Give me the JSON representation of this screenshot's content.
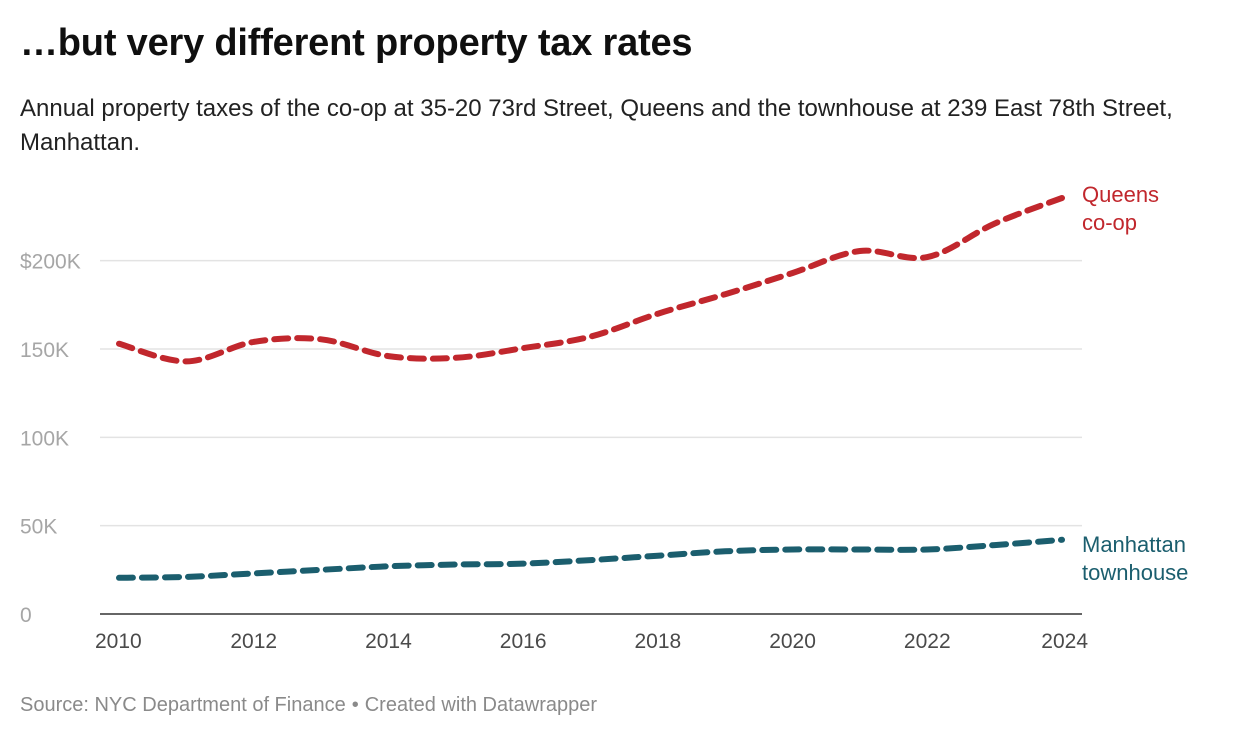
{
  "header": {
    "title": "…but very different property tax rates",
    "subtitle": "Annual property taxes of the co-op at 35-20 73rd Street, Queens and the townhouse at 239 East 78th Street, Manhattan."
  },
  "footer": {
    "source": "Source: NYC Department of Finance",
    "separator": "•",
    "credit": "Created with Datawrapper"
  },
  "chart_data": {
    "type": "line",
    "title": "…but very different property tax rates",
    "subtitle": "Annual property taxes of the co-op at 35-20 73rd Street, Queens and the townhouse at 239 East 78th Street, Manhattan.",
    "xlabel": "",
    "ylabel": "",
    "x": [
      2010,
      2011,
      2012,
      2013,
      2014,
      2015,
      2016,
      2017,
      2018,
      2019,
      2020,
      2021,
      2022,
      2023,
      2024
    ],
    "xlim": [
      2010,
      2024
    ],
    "ylim": [
      0,
      240000
    ],
    "x_ticks": [
      2010,
      2012,
      2014,
      2016,
      2018,
      2020,
      2022,
      2024
    ],
    "x_tick_labels": [
      "2010",
      "2012",
      "2014",
      "2016",
      "2018",
      "2020",
      "2022",
      "2024"
    ],
    "y_ticks": [
      0,
      50000,
      100000,
      150000,
      200000
    ],
    "y_tick_labels": [
      "0",
      "50K",
      "100K",
      "150K",
      "$200K"
    ],
    "grid": true,
    "legend": "direct labels at line ends",
    "line_style": "dashed",
    "series": [
      {
        "name": "Queens co-op",
        "label_lines": [
          "Queens",
          "co-op"
        ],
        "color": "#c1272d",
        "values": [
          153000,
          143000,
          154000,
          155500,
          146000,
          145000,
          150500,
          157000,
          170000,
          181000,
          193000,
          205500,
          202000,
          221000,
          235500
        ]
      },
      {
        "name": "Manhattan townhouse",
        "label_lines": [
          "Manhattan",
          "townhouse"
        ],
        "color": "#1b5e6e",
        "values": [
          20500,
          21000,
          23000,
          25000,
          27000,
          28000,
          28500,
          30500,
          33000,
          35500,
          36500,
          36500,
          36500,
          39000,
          42000
        ]
      }
    ],
    "colors": {
      "grid": "#e3e3e3",
      "baseline": "#333333",
      "tick_label": "#a6a6a6",
      "x_tick_label": "#4a4a4a"
    }
  }
}
